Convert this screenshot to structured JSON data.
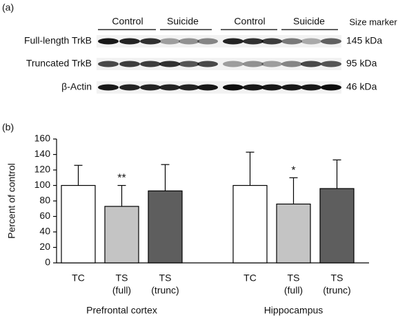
{
  "panel_a": {
    "label": "(a)",
    "lane_groups": [
      "Control",
      "Suicide",
      "Control",
      "Suicide"
    ],
    "marker_header": "Size marker",
    "rows": [
      {
        "name": "Full-length TrkB",
        "size": "145 kDa"
      },
      {
        "name": "Truncated TrkB",
        "size": "95 kDa"
      },
      {
        "name": "β-Actin",
        "size": "46 kDa"
      }
    ]
  },
  "chart_data": {
    "type": "bar",
    "panel_label": "(b)",
    "y_label": "Percent of control",
    "groups": [
      "Prefrontal cortex",
      "Hippocampus"
    ],
    "series": [
      {
        "label": [
          "TC"
        ],
        "color": "#ffffff",
        "values": [
          100,
          100
        ],
        "errors": [
          26,
          43
        ]
      },
      {
        "label": [
          "TS",
          "(full)"
        ],
        "color": "#c4c4c4",
        "values": [
          73,
          76
        ],
        "errors": [
          27,
          34
        ],
        "significance": [
          "**",
          "*"
        ]
      },
      {
        "label": [
          "TS",
          "(trunc)"
        ],
        "color": "#5e5e5e",
        "values": [
          93,
          96
        ],
        "errors": [
          34,
          37
        ]
      }
    ],
    "ylim": [
      0,
      160
    ],
    "yticks": [
      0,
      20,
      40,
      60,
      80,
      100,
      120,
      140,
      160
    ]
  }
}
